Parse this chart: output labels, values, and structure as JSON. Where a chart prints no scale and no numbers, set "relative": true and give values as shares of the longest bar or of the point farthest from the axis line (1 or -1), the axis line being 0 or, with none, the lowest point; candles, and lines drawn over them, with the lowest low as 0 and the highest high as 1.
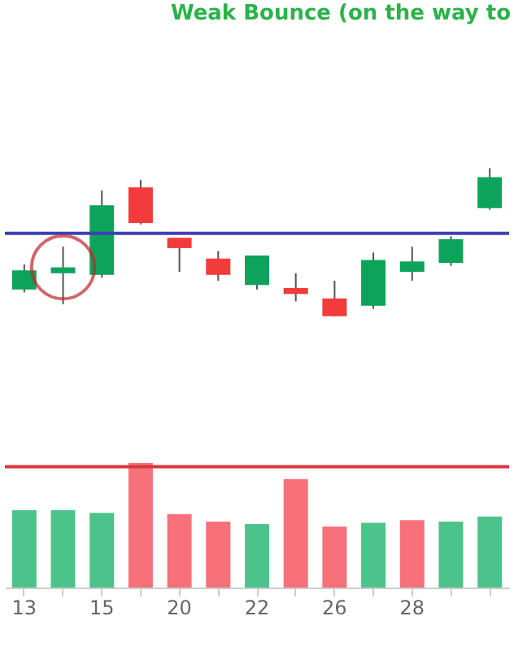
{
  "chart_data": [
    {
      "type": "candlestick",
      "relative": true,
      "tick_labels": false,
      "categories": [
        "13",
        null,
        "15",
        null,
        "20",
        null,
        "22",
        null,
        "26",
        null,
        "28",
        null,
        null
      ],
      "ohlc": [
        [
          0.18,
          0.35,
          0.16,
          0.31
        ],
        [
          0.29,
          0.47,
          0.08,
          0.33
        ],
        [
          0.28,
          0.85,
          0.26,
          0.75
        ],
        [
          0.87,
          0.92,
          0.62,
          0.63
        ],
        [
          0.53,
          0.53,
          0.3,
          0.46
        ],
        [
          0.39,
          0.44,
          0.24,
          0.28
        ],
        [
          0.21,
          0.41,
          0.18,
          0.41
        ],
        [
          0.19,
          0.29,
          0.1,
          0.15
        ],
        [
          0.12,
          0.24,
          0,
          0
        ],
        [
          0.07,
          0.43,
          0.05,
          0.38
        ],
        [
          0.3,
          0.47,
          0.24,
          0.37
        ],
        [
          0.36,
          0.54,
          0.34,
          0.52
        ],
        [
          0.73,
          1,
          0.72,
          0.94
        ]
      ],
      "colors": [
        "#0ea35a",
        "#0ea35a",
        "#0ea35a",
        "#f23b3b",
        "#f23b3b",
        "#f23b3b",
        "#0ea35a",
        "#f23b3b",
        "#f23b3b",
        "#0ea35a",
        "#0ea35a",
        "#0ea35a",
        "#0ea35a"
      ],
      "ref_lines": [
        {
          "axis": "y",
          "value": 0.56,
          "color": "#3f3fb5"
        }
      ],
      "annotations": [
        "Weak Bounce (on the way to"
      ]
    },
    {
      "type": "bar",
      "relative": true,
      "tick_labels": "x",
      "categories": [
        "13",
        null,
        "15",
        null,
        "20",
        null,
        "22",
        null,
        "26",
        null,
        "28",
        null,
        null
      ],
      "values": [
        0.62,
        0.62,
        0.6,
        1,
        0.59,
        0.53,
        0.51,
        0.87,
        0.49,
        0.52,
        0.54,
        0.53,
        0.57
      ],
      "colors": [
        "#4cc38a",
        "#4cc38a",
        "#4cc38a",
        "#f7707a",
        "#f7707a",
        "#f7707a",
        "#4cc38a",
        "#f7707a",
        "#f7707a",
        "#4cc38a",
        "#f7707a",
        "#4cc38a",
        "#4cc38a"
      ],
      "ref_lines": [
        {
          "axis": "y",
          "value": 0.97,
          "color": "#d9363e"
        }
      ]
    }
  ]
}
